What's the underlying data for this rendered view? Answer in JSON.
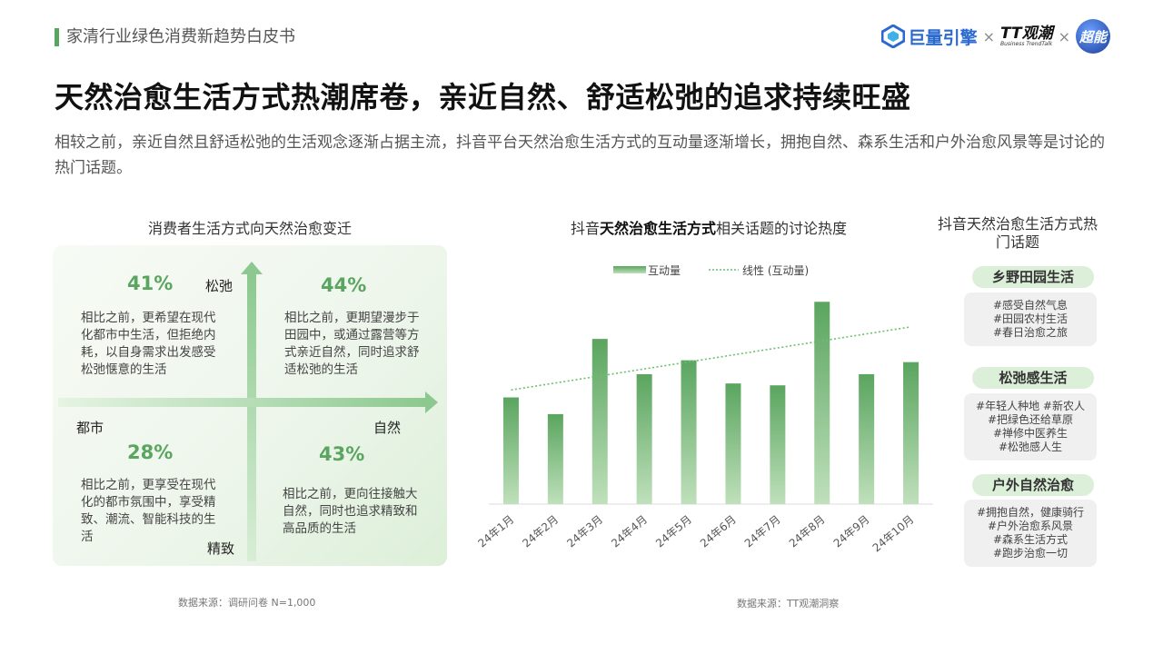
{
  "header": {
    "section_title": "家清行业绿色消费新趋势白皮书",
    "logos": {
      "jl_name": "巨量引擎",
      "times": "×",
      "tt_big": "TT观潮",
      "tt_small": "Business TrendTalk",
      "cn": "超能"
    }
  },
  "title": "天然治愈生活方式热潮席卷，亲近自然、舒适松弛的追求持续旺盛",
  "intro": "相较之前，亲近自然且舒适松弛的生活观念逐渐占据主流，抖音平台天然治愈生活方式的互动量逐渐增长，拥抱自然、森系生活和户外治愈风景等是讨论的热门话题。",
  "quadrant": {
    "title": "消费者生活方式向天然治愈变迁",
    "axis": {
      "top": "松弛",
      "bottom": "精致",
      "left": "都市",
      "right": "自然"
    },
    "tl": {
      "pct": "41%",
      "text": "相比之前，更希望在现代化都市中生活，但拒绝内耗，以自身需求出发感受松弛惬意的生活"
    },
    "tr": {
      "pct": "44%",
      "text": "相比之前，更期望漫步于田园中，或通过露营等方式亲近自然，同时追求舒适松弛的生活"
    },
    "bl": {
      "pct": "28%",
      "text": "相比之前，更享受在现代化的都市氛围中，享受精致、潮流、智能科技的生活"
    },
    "br": {
      "pct": "43%",
      "text": "相比之前，更向往接触大自然，同时也追求精致和高品质的生活"
    },
    "source": "数据来源：调研问卷 N=1,000"
  },
  "chart": {
    "title_pre": "抖音",
    "title_bold": "天然治愈生活方式",
    "title_post": "相关话题的讨论热度",
    "source": "数据来源：TT观潮洞察"
  },
  "chart_data": {
    "type": "bar",
    "categories": [
      "24年1月",
      "24年2月",
      "24年3月",
      "24年4月",
      "24年5月",
      "24年6月",
      "24年7月",
      "24年8月",
      "24年9月",
      "24年10月"
    ],
    "series": [
      {
        "name": "互动量",
        "values": [
          115,
          97,
          178,
          140,
          155,
          130,
          128,
          218,
          140,
          153
        ]
      },
      {
        "name": "线性 (互动量)",
        "trendline": true,
        "values": [
          123,
          131,
          138,
          146,
          154,
          161,
          169,
          176,
          184,
          191
        ]
      }
    ],
    "ylim": [
      0,
      230
    ],
    "grid": false,
    "legend": "top",
    "colors": {
      "bar_top": "#5aa55f",
      "bar_bottom": "#bfe0bb",
      "trend": "#6cbf6e"
    }
  },
  "topics": {
    "title": "抖音天然治愈生活方式热门话题",
    "groups": [
      {
        "name": "乡野田园生活",
        "tags": [
          "#感受自然气息",
          "#田园农村生活",
          "#春日治愈之旅"
        ]
      },
      {
        "name": "松弛感生活",
        "tags": [
          "#年轻人种地 #新农人",
          "#把绿色还给草原",
          "#禅修中医养生",
          "#松弛感人生"
        ]
      },
      {
        "name": "户外自然治愈",
        "tags": [
          "#拥抱自然，健康骑行",
          "#户外治愈系风景",
          "#森系生活方式",
          "#跑步治愈一切"
        ]
      }
    ]
  }
}
